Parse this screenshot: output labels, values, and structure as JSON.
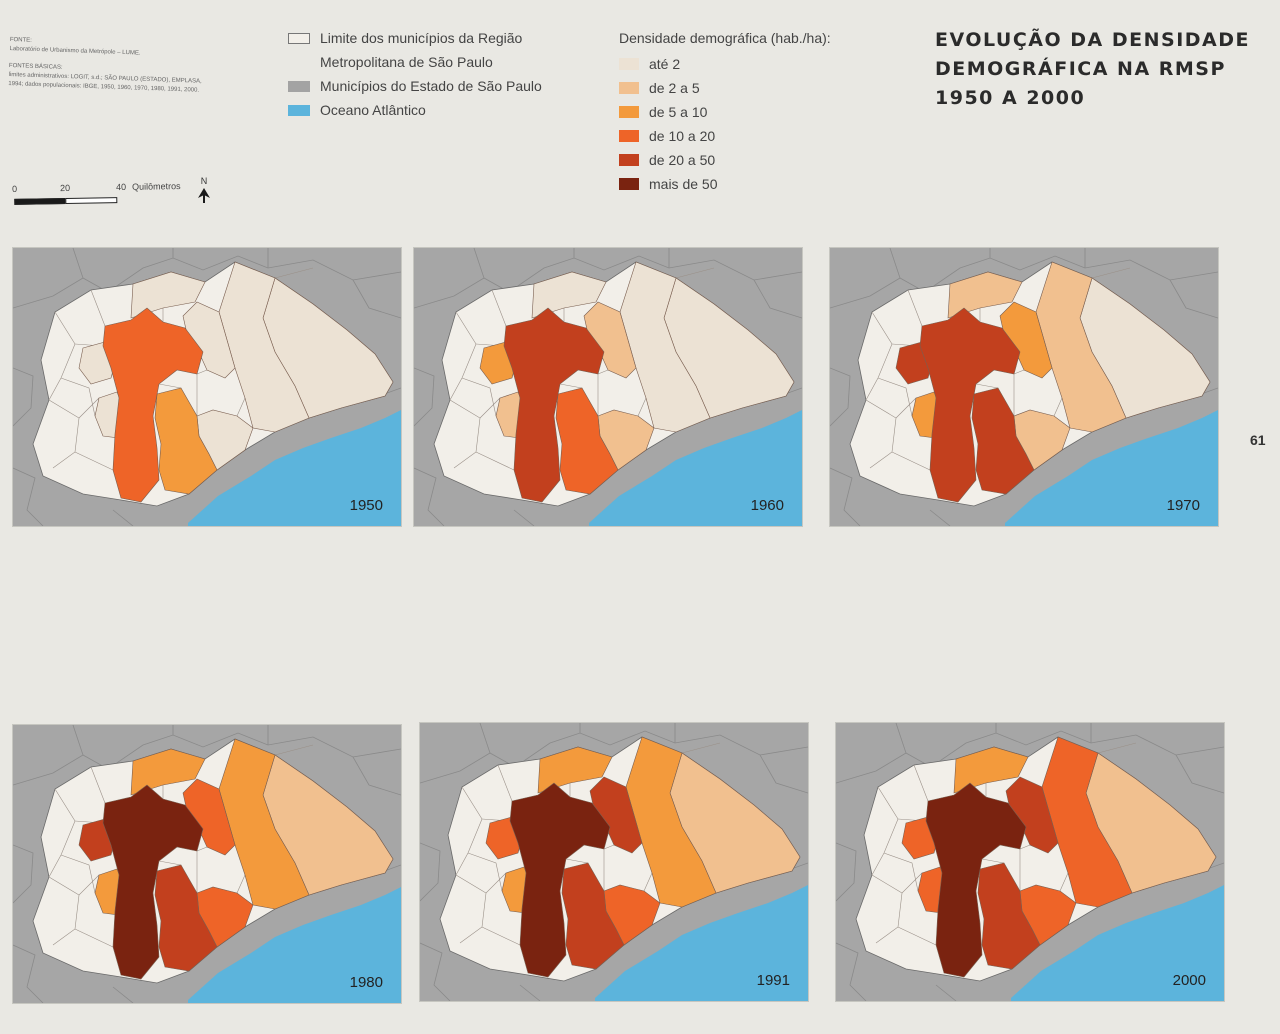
{
  "sources": {
    "fonte_label": "FONTE:",
    "fonte_text": "Laboratório de Urbanismo da Metrópole – LUME.",
    "basicas_label": "FONTES BÁSICAS:",
    "basicas_text": "limites administrativos: LOGIT, s.d.; SÃO PAULO (ESTADO), EMPLASA, 1994; dados populacionais: IBGE, 1950, 1960, 1970, 1980, 1991, 2000."
  },
  "scale_bar": {
    "ticks": [
      "0",
      "20",
      "40"
    ],
    "unit": "Quilômetros",
    "north": "N"
  },
  "base_legend": [
    {
      "label_line1": "Limite dos municípios da Região",
      "label_line2": "Metropolitana de São Paulo",
      "color": "#f2efe9",
      "outlined": true
    },
    {
      "label_line1": "Municípios do Estado de São Paulo",
      "color": "#a3a3a3",
      "outlined": false
    },
    {
      "label_line1": "Oceano Atlântico",
      "color": "#5cb4dc",
      "outlined": false
    }
  ],
  "density_legend": {
    "title": "Densidade demográfica (hab./ha):",
    "classes": [
      {
        "label": "até 2",
        "color": "#ece2d4"
      },
      {
        "label": "de 2 a 5",
        "color": "#f1c08f"
      },
      {
        "label": "de 5 a 10",
        "color": "#f39a3c"
      },
      {
        "label": "de 10 a 20",
        "color": "#ee6428"
      },
      {
        "label": "de 20 a 50",
        "color": "#c2401e"
      },
      {
        "label": "mais de 50",
        "color": "#7a2310"
      }
    ]
  },
  "title": {
    "line1": "EVOLUÇÃO DA DENSIDADE",
    "line2": "DEMOGRÁFICA NA RMSP",
    "line3": "1950 A 2000"
  },
  "page_number": "61",
  "colors": {
    "background": "#e9e8e3",
    "state": "#a6a6a6",
    "ocean": "#5cb4dc",
    "rmsp": "#f2efe9"
  },
  "maps": [
    {
      "year": "1950",
      "levels": {
        "sp": 3,
        "abc": 2,
        "guarulhos": 0,
        "osasco": 0,
        "taboao": 0,
        "north": 0,
        "east1": 0,
        "east2": 0,
        "southeast": 0
      }
    },
    {
      "year": "1960",
      "levels": {
        "sp": 4,
        "abc": 3,
        "guarulhos": 1,
        "osasco": 2,
        "taboao": 1,
        "north": 0,
        "east1": 0,
        "east2": 0,
        "southeast": 1
      }
    },
    {
      "year": "1970",
      "levels": {
        "sp": 4,
        "abc": 4,
        "guarulhos": 2,
        "osasco": 4,
        "taboao": 2,
        "north": 1,
        "east1": 1,
        "east2": 0,
        "southeast": 1
      }
    },
    {
      "year": "1980",
      "levels": {
        "sp": 5,
        "abc": 4,
        "guarulhos": 3,
        "osasco": 4,
        "taboao": 2,
        "north": 2,
        "east1": 2,
        "east2": 1,
        "southeast": 3
      }
    },
    {
      "year": "1991",
      "levels": {
        "sp": 5,
        "abc": 4,
        "guarulhos": 4,
        "osasco": 3,
        "taboao": 2,
        "north": 2,
        "east1": 2,
        "east2": 1,
        "southeast": 3
      }
    },
    {
      "year": "2000",
      "levels": {
        "sp": 5,
        "abc": 4,
        "guarulhos": 4,
        "osasco": 3,
        "taboao": 3,
        "north": 2,
        "east1": 3,
        "east2": 1,
        "southeast": 3
      }
    }
  ]
}
